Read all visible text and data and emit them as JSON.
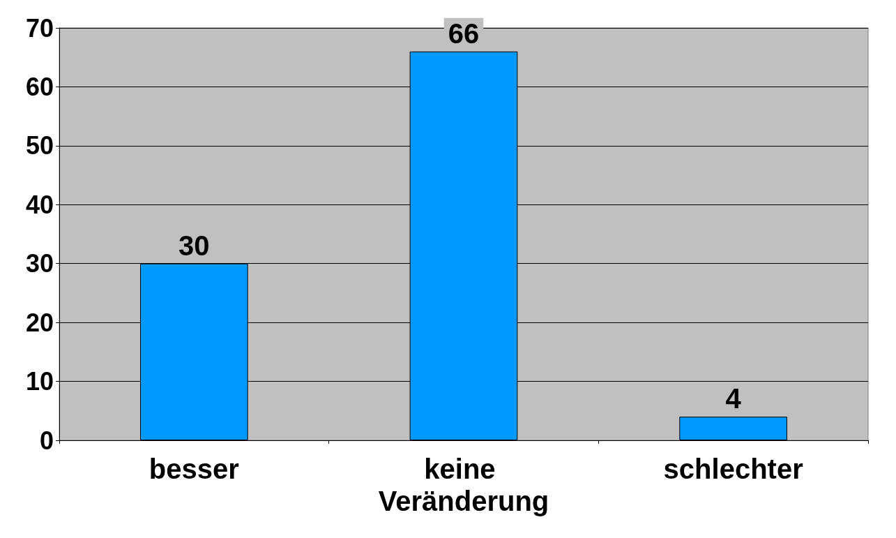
{
  "chart_data": {
    "type": "bar",
    "categories": [
      "besser",
      "keine Veränderung",
      "schlechter"
    ],
    "values": [
      30,
      66,
      4
    ],
    "color": "#0099ff",
    "ylim": [
      0,
      70
    ],
    "yticks": [
      0,
      10,
      20,
      30,
      40,
      50,
      60,
      70
    ],
    "grid": "y",
    "data_labels": true
  }
}
